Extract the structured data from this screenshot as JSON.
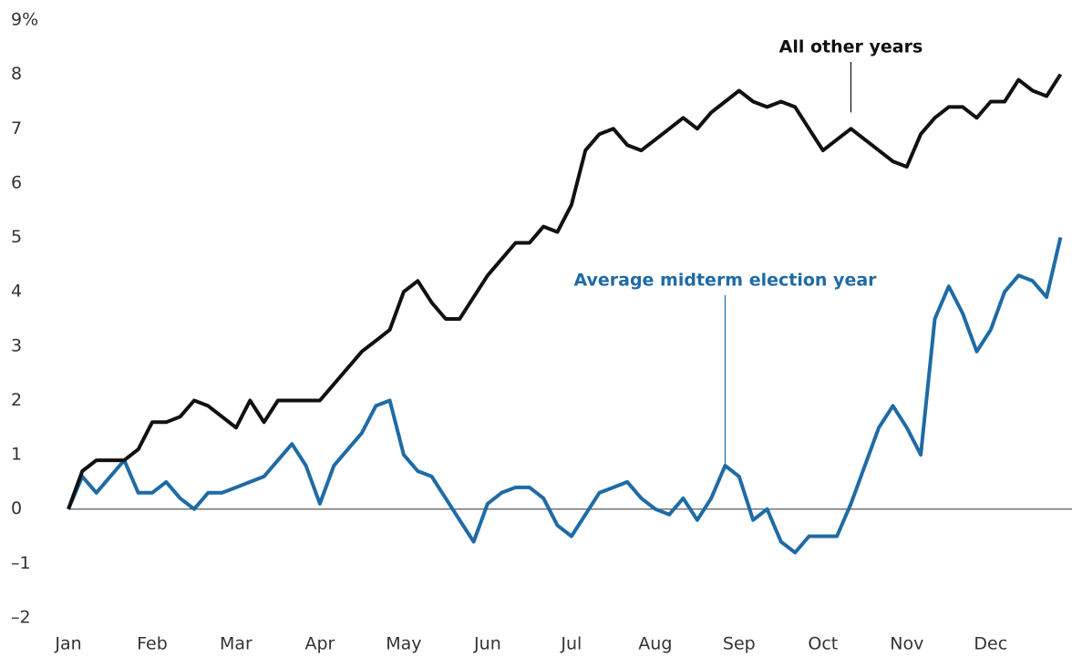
{
  "chart_data": {
    "type": "line",
    "categories": [
      "Jan",
      null,
      null,
      null,
      null,
      null,
      "Feb",
      null,
      null,
      null,
      null,
      null,
      "Mar",
      null,
      null,
      null,
      null,
      null,
      "Apr",
      null,
      null,
      null,
      null,
      null,
      "May",
      null,
      null,
      null,
      null,
      null,
      "Jun",
      null,
      null,
      null,
      null,
      null,
      "Jul",
      null,
      null,
      null,
      null,
      null,
      "Aug",
      null,
      null,
      null,
      null,
      null,
      "Sep",
      null,
      null,
      null,
      null,
      null,
      "Oct",
      null,
      null,
      null,
      null,
      null,
      "Nov",
      null,
      null,
      null,
      null,
      null,
      "Dec",
      null,
      null,
      null,
      null,
      null
    ],
    "series": [
      {
        "name": "All other years",
        "color": "#111111",
        "values": [
          0,
          0.7,
          0.9,
          0.9,
          0.9,
          1.1,
          1.6,
          1.6,
          1.7,
          2.0,
          1.9,
          1.7,
          1.5,
          2.0,
          1.6,
          2.0,
          2.0,
          2.0,
          2.0,
          2.3,
          2.6,
          2.9,
          3.1,
          3.3,
          4.0,
          4.2,
          3.8,
          3.5,
          3.5,
          3.9,
          4.3,
          4.6,
          4.9,
          4.9,
          5.2,
          5.1,
          5.6,
          6.6,
          6.9,
          7.0,
          6.7,
          6.6,
          6.8,
          7.0,
          7.2,
          7.0,
          7.3,
          7.5,
          7.7,
          7.5,
          7.4,
          7.5,
          7.4,
          7.0,
          6.6,
          6.8,
          7.0,
          6.8,
          6.6,
          6.4,
          6.3,
          6.9,
          7.2,
          7.4,
          7.4,
          7.2,
          7.5,
          7.5,
          7.9,
          7.7,
          7.6,
          8.0
        ]
      },
      {
        "name": "Average midterm election year",
        "color": "#1f6ba5",
        "values": [
          0,
          0.6,
          0.3,
          0.6,
          0.9,
          0.3,
          0.3,
          0.5,
          0.2,
          0.0,
          0.3,
          0.3,
          0.4,
          0.5,
          0.6,
          0.9,
          1.2,
          0.8,
          0.1,
          0.8,
          1.1,
          1.4,
          1.9,
          2.0,
          1.0,
          0.7,
          0.6,
          0.2,
          -0.2,
          -0.6,
          0.1,
          0.3,
          0.4,
          0.4,
          0.2,
          -0.3,
          -0.5,
          -0.1,
          0.3,
          0.4,
          0.5,
          0.2,
          0.0,
          -0.1,
          0.2,
          -0.2,
          0.2,
          0.8,
          0.6,
          -0.2,
          0.0,
          -0.6,
          -0.8,
          -0.5,
          -0.5,
          -0.5,
          0.1,
          0.8,
          1.5,
          1.9,
          1.5,
          1.0,
          3.5,
          4.1,
          3.6,
          2.9,
          3.3,
          4.0,
          4.3,
          4.2,
          3.9,
          5.0
        ]
      }
    ],
    "annotations": [
      {
        "text": "All other years",
        "index": 56,
        "value": 7.3
      },
      {
        "text": "Average midterm election year",
        "index": 47,
        "value": 0.8
      }
    ],
    "ylim": [
      -2,
      9
    ],
    "yticks": [
      {
        "value": -2,
        "label": "–2"
      },
      {
        "value": -1,
        "label": "–1"
      },
      0,
      1,
      2,
      3,
      4,
      5,
      6,
      7,
      8,
      {
        "value": 9,
        "label": "9%"
      }
    ],
    "zero_line": true
  }
}
